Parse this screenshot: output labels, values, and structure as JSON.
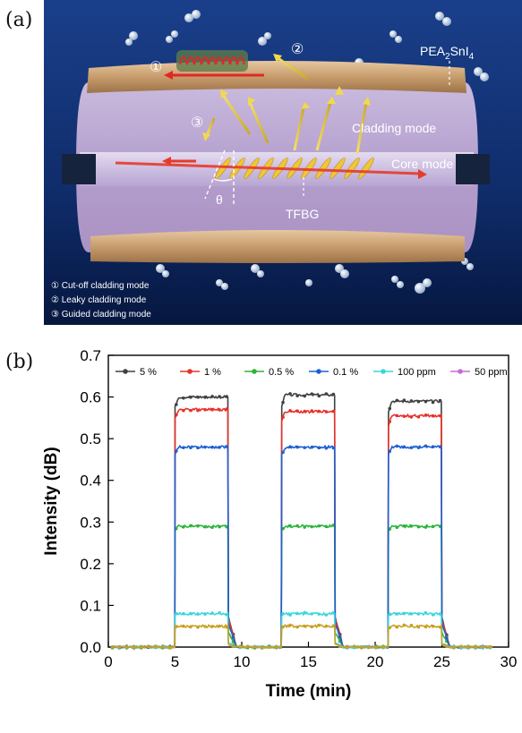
{
  "panel_a": {
    "label": "(a)",
    "pea_label": "PEA",
    "pea_sub": "2",
    "pea_label2": "SnI",
    "pea_sub2": "4",
    "cladding_mode": "Cladding mode",
    "core_mode": "Core mode",
    "tfbg": "TFBG",
    "theta": "θ",
    "marker1": "①",
    "marker2": "②",
    "marker3": "③",
    "legend": [
      "① Cut-off cladding mode",
      "② Leaky cladding mode",
      "③ Guided cladding mode"
    ]
  },
  "panel_b": {
    "label": "(b)"
  },
  "chart_data": {
    "type": "line",
    "xlabel": "Time (min)",
    "ylabel": "Intensity (dB)",
    "xlim": [
      0,
      30
    ],
    "ylim": [
      0.0,
      0.7
    ],
    "xticks": [
      0,
      5,
      10,
      15,
      20,
      25,
      30
    ],
    "yticks": [
      0.0,
      0.1,
      0.2,
      0.3,
      0.4,
      0.5,
      0.6,
      0.7
    ],
    "grid": false,
    "legend_position": "top",
    "on_intervals": [
      [
        5,
        9
      ],
      [
        13,
        17
      ],
      [
        21,
        25
      ]
    ],
    "series": [
      {
        "name": "5 %",
        "color": "#404040",
        "marker": "square",
        "levels": [
          0.6,
          0.605,
          0.59
        ]
      },
      {
        "name": "1 %",
        "color": "#e8312a",
        "marker": "circle",
        "levels": [
          0.57,
          0.565,
          0.555
        ]
      },
      {
        "name": "0.5 %",
        "color": "#2ab53a",
        "marker": "triangle-up",
        "levels": [
          0.29,
          0.29,
          0.29
        ]
      },
      {
        "name": "0.1 %",
        "color": "#2060d0",
        "marker": "triangle-down",
        "levels": [
          0.48,
          0.48,
          0.48
        ]
      },
      {
        "name": "100 ppm",
        "color": "#3ad6e0",
        "marker": "diamond",
        "levels": [
          0.08,
          0.08,
          0.08
        ]
      },
      {
        "name": "50 ppm",
        "color": "#c66ad8",
        "marker": "triangle-left",
        "levels": [
          0.05,
          0.05,
          0.05
        ]
      }
    ],
    "extra_series_color": "#c8a020"
  }
}
